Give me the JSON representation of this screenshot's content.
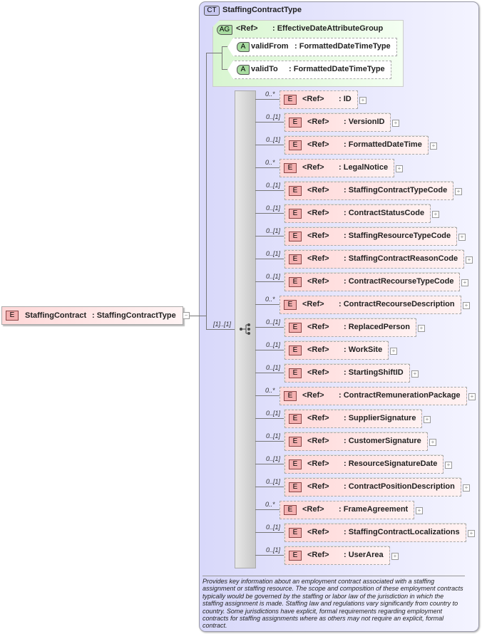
{
  "root": {
    "badge": "E",
    "name": "StaffingContract",
    "type": ": StaffingContractType"
  },
  "complex_type": {
    "badge": "CT",
    "name": "StaffingContractType"
  },
  "attribute_group": {
    "badge": "AG",
    "ref": "<Ref>",
    "name": ": EffectiveDateAttributeGroup",
    "attributes": [
      {
        "badge": "A",
        "name": "validFrom",
        "type": ": FormattedDateTimeType"
      },
      {
        "badge": "A",
        "name": "validTo",
        "type": ": FormattedDateTimeType"
      }
    ]
  },
  "sequence": {
    "cardinality": "[1]..[1]"
  },
  "elements": [
    {
      "card": "0..*",
      "ref": "<Ref>",
      "name": ": ID"
    },
    {
      "card": "0..[1]",
      "ref": "<Ref>",
      "name": ": VersionID"
    },
    {
      "card": "0..[1]",
      "ref": "<Ref>",
      "name": ": FormattedDateTime"
    },
    {
      "card": "0..*",
      "ref": "<Ref>",
      "name": ": LegalNotice"
    },
    {
      "card": "0..[1]",
      "ref": "<Ref>",
      "name": ": StaffingContractTypeCode"
    },
    {
      "card": "0..[1]",
      "ref": "<Ref>",
      "name": ": ContractStatusCode"
    },
    {
      "card": "0..[1]",
      "ref": "<Ref>",
      "name": ": StaffingResourceTypeCode"
    },
    {
      "card": "0..[1]",
      "ref": "<Ref>",
      "name": ": StaffingContractReasonCode"
    },
    {
      "card": "0..[1]",
      "ref": "<Ref>",
      "name": ": ContractRecourseTypeCode"
    },
    {
      "card": "0..*",
      "ref": "<Ref>",
      "name": ": ContractRecourseDescription"
    },
    {
      "card": "0..[1]",
      "ref": "<Ref>",
      "name": ": ReplacedPerson"
    },
    {
      "card": "0..[1]",
      "ref": "<Ref>",
      "name": ": WorkSite"
    },
    {
      "card": "0..[1]",
      "ref": "<Ref>",
      "name": ": StartingShiftID"
    },
    {
      "card": "0..*",
      "ref": "<Ref>",
      "name": ": ContractRemunerationPackage"
    },
    {
      "card": "0..[1]",
      "ref": "<Ref>",
      "name": ": SupplierSignature"
    },
    {
      "card": "0..[1]",
      "ref": "<Ref>",
      "name": ": CustomerSignature"
    },
    {
      "card": "0..[1]",
      "ref": "<Ref>",
      "name": ": ResourceSignatureDate"
    },
    {
      "card": "0..[1]",
      "ref": "<Ref>",
      "name": ": ContractPositionDescription"
    },
    {
      "card": "0..*",
      "ref": "<Ref>",
      "name": ": FrameAgreement"
    },
    {
      "card": "0..[1]",
      "ref": "<Ref>",
      "name": ": StaffingContractLocalizations"
    },
    {
      "card": "0..[1]",
      "ref": "<Ref>",
      "name": ": UserArea"
    }
  ],
  "element_badge": "E",
  "documentation": "Provides key information about an employment contract associated with a staffing assignment or staffing resource. The scope and composition of these employment contracts typically would be governed by the staffing or labor law of the jurisdiction in which the staffing assignment is made. Staffing law and regulations vary significantly from country to country. Some jurisdictions have explicit, formal requirements regarding employment contracts for staffing assignments where as others may not require an explicit, formal contract."
}
